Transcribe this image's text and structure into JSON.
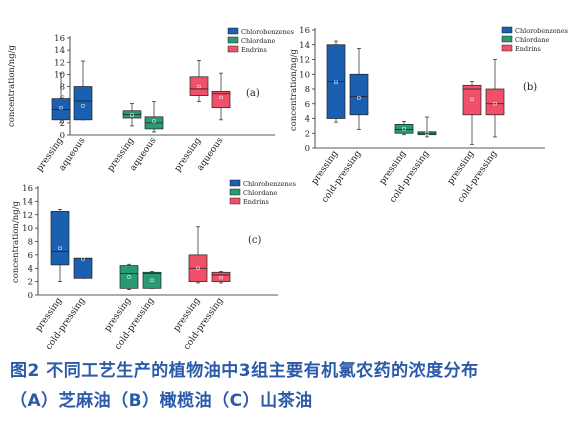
{
  "caption": {
    "line1": "图2 不同工艺生产的植物油中3组主要有机氯农药的浓度分布",
    "line2": "（A）芝麻油（B）橄榄油（C）山茶油"
  },
  "colors": {
    "Chlorobenzenes": "#1a5fb0",
    "Chlordane": "#2a9a72",
    "Endrins": "#f0506a"
  },
  "chart_data": [
    {
      "type": "box",
      "panel_label": "(a)",
      "ylabel": "concentration/ng/g",
      "ylim": [
        0,
        16
      ],
      "yticks": [
        0,
        2,
        4,
        6,
        8,
        10,
        12,
        14,
        16
      ],
      "legend": [
        "Chlorobenzenes",
        "Chlordane",
        "Endrins"
      ],
      "legend_position": "top-right",
      "groups": [
        {
          "series": "Chlorobenzenes",
          "boxes": [
            {
              "label": "pressing",
              "q1": 2.5,
              "median": 4.2,
              "q3": 6.0,
              "min": 2.0,
              "max": 10.2,
              "mean": 4.5
            },
            {
              "label": "aqueous",
              "q1": 2.5,
              "median": 5.6,
              "q3": 8.0,
              "min": 2.5,
              "max": 12.2,
              "mean": 4.8
            }
          ]
        },
        {
          "series": "Chlordane",
          "boxes": [
            {
              "label": "pressing",
              "q1": 2.8,
              "median": 3.4,
              "q3": 4.0,
              "min": 1.5,
              "max": 5.2,
              "mean": 3.3
            },
            {
              "label": "aqueous",
              "q1": 1.0,
              "median": 2.0,
              "q3": 3.0,
              "min": 0.5,
              "max": 5.5,
              "mean": 2.3
            }
          ]
        },
        {
          "series": "Endrins",
          "boxes": [
            {
              "label": "pressing",
              "q1": 6.5,
              "median": 7.6,
              "q3": 9.6,
              "min": 5.5,
              "max": 12.3,
              "mean": 8.0
            },
            {
              "label": "aqueous",
              "q1": 4.5,
              "median": 6.8,
              "q3": 7.2,
              "min": 2.5,
              "max": 10.2,
              "mean": 6.2
            }
          ]
        }
      ]
    },
    {
      "type": "box",
      "panel_label": "(b)",
      "ylabel": "concentration/ng/g",
      "ylim": [
        0,
        16
      ],
      "yticks": [
        0,
        2,
        4,
        6,
        8,
        10,
        12,
        14,
        16
      ],
      "legend": [
        "Chlorobenzenes",
        "Chlordane",
        "Endrins"
      ],
      "legend_position": "top-right",
      "groups": [
        {
          "series": "Chlorobenzenes",
          "boxes": [
            {
              "label": "pressing",
              "q1": 4.0,
              "median": 9.0,
              "q3": 14.0,
              "min": 3.5,
              "max": 14.5,
              "mean": 8.9
            },
            {
              "label": "cold-pressing",
              "q1": 4.5,
              "median": 7.0,
              "q3": 10.0,
              "min": 2.5,
              "max": 13.5,
              "mean": 6.8
            }
          ]
        },
        {
          "series": "Chlordane",
          "boxes": [
            {
              "label": "pressing",
              "q1": 2.0,
              "median": 2.5,
              "q3": 3.2,
              "min": 1.8,
              "max": 3.6,
              "mean": 2.6
            },
            {
              "label": "cold-pressing",
              "q1": 1.8,
              "median": 2.0,
              "q3": 2.2,
              "min": 1.5,
              "max": 4.2,
              "mean": 2.0
            }
          ]
        },
        {
          "series": "Endrins",
          "boxes": [
            {
              "label": "pressing",
              "q1": 4.5,
              "median": 8.0,
              "q3": 8.5,
              "min": 0.5,
              "max": 9.0,
              "mean": 6.6
            },
            {
              "label": "cold-pressing",
              "q1": 4.5,
              "median": 6.0,
              "q3": 8.0,
              "min": 1.5,
              "max": 12.0,
              "mean": 6.0
            }
          ]
        }
      ]
    },
    {
      "type": "box",
      "panel_label": "(c)",
      "ylabel": "concentration/ng/g",
      "ylim": [
        0,
        16
      ],
      "yticks": [
        0,
        2,
        4,
        6,
        8,
        10,
        12,
        14,
        16
      ],
      "legend": [
        "Chlorobenzenes",
        "Chlordane",
        "Endrins"
      ],
      "legend_position": "top-right",
      "groups": [
        {
          "series": "Chlorobenzenes",
          "boxes": [
            {
              "label": "pressing",
              "q1": 4.5,
              "median": 6.5,
              "q3": 12.5,
              "min": 2.0,
              "max": 12.8,
              "mean": 7.0
            },
            {
              "label": "cold-pressing",
              "q1": 2.5,
              "median": 5.5,
              "q3": 5.5,
              "min": 2.5,
              "max": 5.5,
              "mean": 5.4
            }
          ]
        },
        {
          "series": "Chlordane",
          "boxes": [
            {
              "label": "pressing",
              "q1": 1.0,
              "median": 3.2,
              "q3": 4.4,
              "min": 0.8,
              "max": 4.6,
              "mean": 2.7
            },
            {
              "label": "cold-pressing",
              "q1": 1.0,
              "median": 3.2,
              "q3": 3.4,
              "min": 1.0,
              "max": 3.5,
              "mean": 2.2
            }
          ]
        },
        {
          "series": "Endrins",
          "boxes": [
            {
              "label": "pressing",
              "q1": 2.0,
              "median": 4.0,
              "q3": 6.0,
              "min": 1.8,
              "max": 10.2,
              "mean": 4.0
            },
            {
              "label": "cold-pressing",
              "q1": 2.0,
              "median": 3.0,
              "q3": 3.4,
              "min": 1.8,
              "max": 3.5,
              "mean": 2.6
            }
          ]
        }
      ]
    }
  ]
}
